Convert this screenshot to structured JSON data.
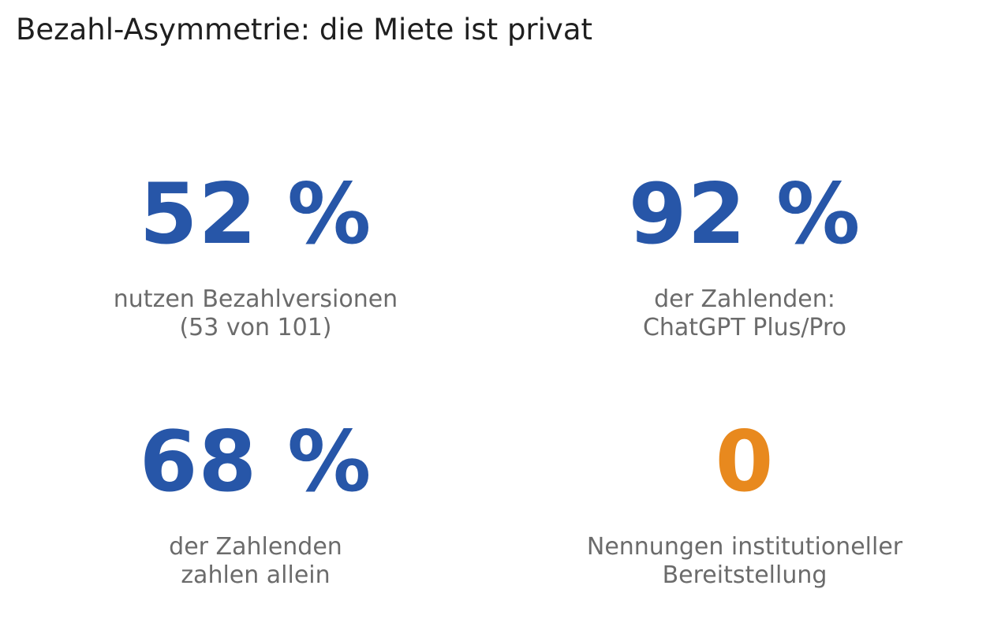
{
  "title": "Bezahl-Asymmetrie: die Miete ist privat",
  "colors": {
    "primary_value": "#2756a8",
    "highlight_value": "#e8891e",
    "label": "#6b6b6b",
    "title": "#1f1f1f"
  },
  "stats": [
    {
      "value": "52 %",
      "label_lines": [
        "nutzen Bezahlversionen",
        "(53 von 101)"
      ],
      "color": "#2756a8"
    },
    {
      "value": "92 %",
      "label_lines": [
        "der Zahlenden:",
        "ChatGPT Plus/Pro"
      ],
      "color": "#2756a8"
    },
    {
      "value": "68 %",
      "label_lines": [
        "der Zahlenden",
        "zahlen allein"
      ],
      "color": "#2756a8"
    },
    {
      "value": "0",
      "label_lines": [
        "Nennungen institutioneller",
        "Bereitstellung"
      ],
      "color": "#e8891e"
    }
  ]
}
